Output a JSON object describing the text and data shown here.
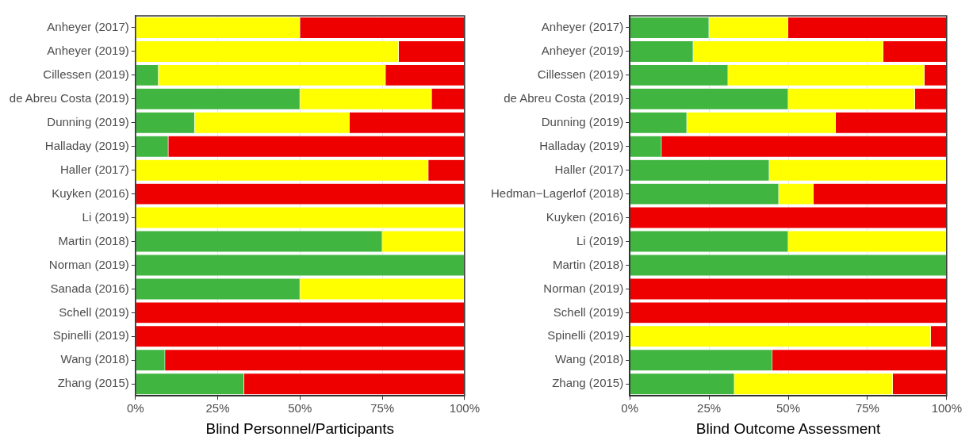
{
  "chart_data": [
    {
      "type": "bar",
      "orientation": "horizontal",
      "stacked": true,
      "xlabel": "Blind Personnel/Participants",
      "categories": [
        "Anheyer (2017)",
        "Anheyer (2019)",
        "Cillessen (2019)",
        "de Abreu Costa (2019)",
        "Dunning (2019)",
        "Halladay (2019)",
        "Haller (2017)",
        "Kuyken (2016)",
        "Li (2019)",
        "Martin (2018)",
        "Norman (2019)",
        "Sanada (2016)",
        "Schell (2019)",
        "Spinelli (2019)",
        "Wang (2018)",
        "Zhang (2015)"
      ],
      "series": [
        {
          "color": "#40b640",
          "values": [
            0,
            0,
            7,
            50,
            18,
            10,
            0,
            0,
            0,
            75,
            100,
            50,
            0,
            0,
            9,
            33
          ]
        },
        {
          "color": "#ffff00",
          "values": [
            50,
            80,
            69,
            40,
            47,
            0,
            89,
            0,
            100,
            25,
            0,
            50,
            0,
            0,
            0,
            0
          ]
        },
        {
          "color": "#ee0000",
          "values": [
            50,
            20,
            24,
            10,
            35,
            90,
            11,
            100,
            0,
            0,
            0,
            0,
            100,
            100,
            91,
            67
          ]
        }
      ],
      "xlim": [
        0,
        100
      ],
      "xticks": [
        {
          "value": 0,
          "label": "0%"
        },
        {
          "value": 25,
          "label": "25%"
        },
        {
          "value": 50,
          "label": "50%"
        },
        {
          "value": 75,
          "label": "75%"
        },
        {
          "value": 100,
          "label": "100%"
        }
      ],
      "grid": true,
      "legend": false
    },
    {
      "type": "bar",
      "orientation": "horizontal",
      "stacked": true,
      "xlabel": "Blind Outcome Assessment",
      "categories": [
        "Anheyer (2017)",
        "Anheyer (2019)",
        "Cillessen (2019)",
        "de Abreu Costa (2019)",
        "Dunning (2019)",
        "Halladay (2019)",
        "Haller (2017)",
        "Hedman−Lagerlof (2018)",
        "Kuyken (2016)",
        "Li (2019)",
        "Martin (2018)",
        "Norman (2019)",
        "Schell (2019)",
        "Spinelli (2019)",
        "Wang (2018)",
        "Zhang (2015)"
      ],
      "series": [
        {
          "color": "#40b640",
          "values": [
            25,
            20,
            31,
            50,
            18,
            10,
            44,
            47,
            0,
            50,
            100,
            0,
            0,
            0,
            45,
            33
          ]
        },
        {
          "color": "#ffff00",
          "values": [
            25,
            60,
            62,
            40,
            47,
            0,
            56,
            11,
            0,
            50,
            0,
            0,
            0,
            95,
            0,
            50
          ]
        },
        {
          "color": "#ee0000",
          "values": [
            50,
            20,
            7,
            10,
            35,
            90,
            0,
            42,
            100,
            0,
            0,
            100,
            100,
            5,
            55,
            17
          ]
        }
      ],
      "xlim": [
        0,
        100
      ],
      "xticks": [
        {
          "value": 0,
          "label": "0%"
        },
        {
          "value": 25,
          "label": "25%"
        },
        {
          "value": 50,
          "label": "50%"
        },
        {
          "value": 75,
          "label": "75%"
        },
        {
          "value": 100,
          "label": "100%"
        }
      ],
      "grid": true,
      "legend": false
    }
  ]
}
